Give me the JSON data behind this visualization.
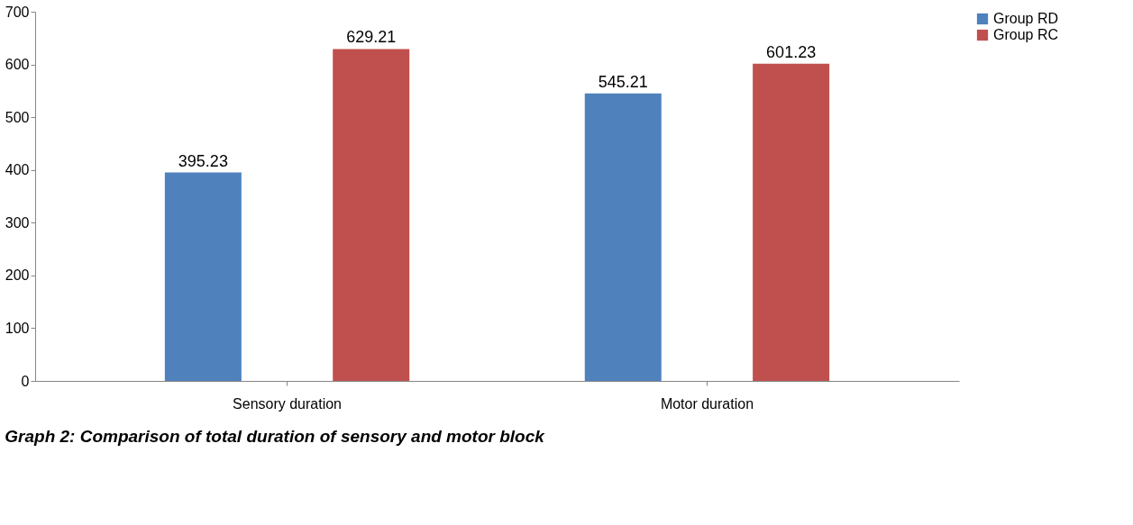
{
  "chart_data": {
    "type": "bar",
    "categories": [
      "Sensory duration",
      "Motor duration"
    ],
    "series": [
      {
        "name": "Group RD",
        "color": "#4f81bd",
        "values": [
          395.23,
          545.21
        ]
      },
      {
        "name": "Group RC",
        "color": "#c0504d",
        "values": [
          629.21,
          601.23
        ]
      }
    ],
    "ylim": [
      0,
      700
    ],
    "yticks": [
      0,
      100,
      200,
      300,
      400,
      500,
      600,
      700
    ],
    "grid": false,
    "legend": "right",
    "data_labels": true,
    "annotations": [
      "Graph 2: Comparison of total duration of sensory and motor block"
    ]
  }
}
